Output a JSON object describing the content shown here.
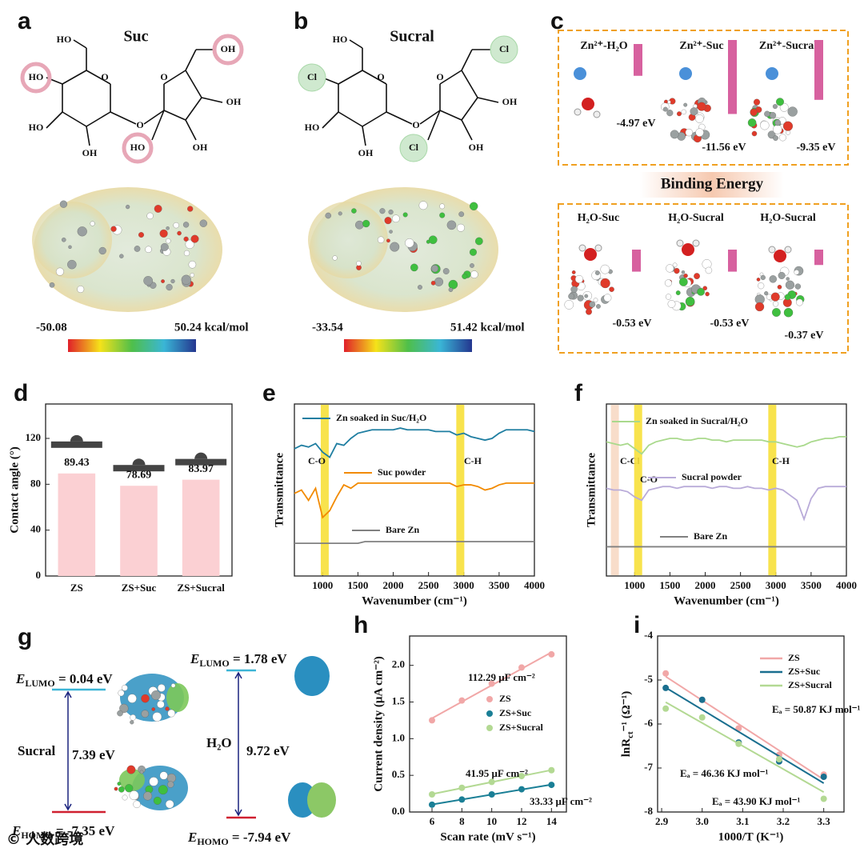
{
  "panels": {
    "a": {
      "label": "a",
      "title": "Suc",
      "atoms": [
        "HO",
        "HO",
        "HO",
        "OH",
        "O",
        "O",
        "O",
        "OH",
        "OH",
        "OH",
        "HO"
      ],
      "colorbar": [
        "-50.08",
        "50.24 kcal/mol"
      ]
    },
    "b": {
      "label": "b",
      "title": "Sucral",
      "atoms": [
        "HO",
        "Cl",
        "HO",
        "OH",
        "O",
        "O",
        "O",
        "Cl",
        "OH",
        "OH",
        "Cl"
      ],
      "colorbar": [
        "-33.54",
        "51.42 kcal/mol"
      ]
    },
    "c": {
      "label": "c",
      "zn": {
        "names": [
          "Zn²⁺-H₂O",
          "Zn²⁺-Suc",
          "Zn²⁺-Sucral"
        ],
        "values": [
          -4.97,
          -11.56,
          -9.35
        ],
        "value_labels": [
          "-4.97 eV",
          "-11.56 eV",
          "-9.35 eV"
        ],
        "color": "#d7619f"
      },
      "banner": "Binding Energy",
      "h2o": {
        "names": [
          "H₂O-Suc",
          "H₂O-Sucral",
          "H₂O-Sucral"
        ],
        "values": [
          -0.53,
          -0.53,
          -0.37
        ],
        "value_labels": [
          "-0.53 eV",
          "-0.53 eV",
          "-0.37 eV"
        ],
        "color": "#d7619f"
      }
    },
    "g": {
      "label": "g",
      "left": {
        "molecule": "Sucral",
        "gap": "7.39 eV",
        "lumo": {
          "symbol": "E",
          "sub": "LUMO",
          "rest": " = 0.04 eV"
        },
        "homo": {
          "symbol": "E",
          "sub": "HOMO",
          "rest": " = -7.35 eV"
        }
      },
      "right": {
        "molecule": "H₂O",
        "gap": "9.72 eV",
        "lumo": {
          "symbol": "E",
          "sub": "LUMO",
          "rest": " = 1.78 eV"
        },
        "homo": {
          "symbol": "E",
          "sub": "HOMO",
          "rest": " = -7.94 eV"
        }
      }
    }
  },
  "chart_data": [
    {
      "type": "bar",
      "panel_label": "d",
      "ylabel": "Contact angle (°)",
      "categories": [
        "ZS",
        "ZS+Suc",
        "ZS+Sucral"
      ],
      "values": [
        89.43,
        78.69,
        83.97
      ],
      "color": "#fbd0d3",
      "ylim": [
        0,
        150
      ],
      "yticks": [
        0,
        40,
        80,
        120
      ]
    },
    {
      "type": "line",
      "panel_label": "e",
      "xlabel": "Wavenumber (cm⁻¹)",
      "ylabel": "Transmittance",
      "x": [
        600,
        700,
        800,
        900,
        1000,
        1100,
        1200,
        1300,
        1400,
        1500,
        1600,
        1700,
        1800,
        1900,
        2000,
        2100,
        2200,
        2300,
        2400,
        2500,
        2600,
        2700,
        2800,
        2900,
        3000,
        3100,
        3200,
        3300,
        3400,
        3500,
        3600,
        3700,
        3800,
        3900,
        4000
      ],
      "xlim": [
        600,
        4000
      ],
      "xticks": [
        1000,
        1500,
        2000,
        2500,
        3000,
        3500,
        4000
      ],
      "ylim": [
        0,
        10
      ],
      "series": [
        {
          "name": "Zn soaked in Suc/H₂O",
          "color": "#1f7ea1",
          "values": [
            7.4,
            7.6,
            7.5,
            7.7,
            7.2,
            6.9,
            7.7,
            7.6,
            8.0,
            8.3,
            8.4,
            8.5,
            8.5,
            8.5,
            8.5,
            8.6,
            8.5,
            8.5,
            8.5,
            8.5,
            8.4,
            8.4,
            8.4,
            8.2,
            8.3,
            8.1,
            8.0,
            7.9,
            8.0,
            8.3,
            8.5,
            8.5,
            8.5,
            8.5,
            8.4
          ]
        },
        {
          "name": "Suc powder",
          "color": "#f28a00",
          "values": [
            4.8,
            5.0,
            4.4,
            5.1,
            3.4,
            3.8,
            4.6,
            5.3,
            5.1,
            5.4,
            5.4,
            5.4,
            5.4,
            5.4,
            5.4,
            5.4,
            5.4,
            5.4,
            5.4,
            5.4,
            5.4,
            5.4,
            5.4,
            5.2,
            5.3,
            5.3,
            5.2,
            5.0,
            5.1,
            5.3,
            5.4,
            5.4,
            5.4,
            5.4,
            5.4
          ]
        },
        {
          "name": "Bare Zn",
          "color": "#808080",
          "values": [
            1.9,
            1.9,
            1.9,
            1.9,
            1.9,
            1.9,
            1.9,
            1.9,
            1.9,
            1.9,
            2.0,
            2.0,
            2.0,
            2.0,
            2.0,
            2.0,
            2.0,
            2.0,
            2.0,
            2.0,
            2.0,
            2.0,
            2.0,
            2.0,
            2.0,
            2.0,
            2.0,
            2.0,
            2.0,
            2.0,
            2.0,
            2.0,
            2.0,
            2.0,
            2.0
          ]
        }
      ],
      "bands": [
        {
          "label": "C-O",
          "x": 1030,
          "color": "#f7e03a"
        },
        {
          "label": "C-H",
          "x": 2950,
          "color": "#f7e03a"
        }
      ]
    },
    {
      "type": "line",
      "panel_label": "f",
      "xlabel": "Wavenumber (cm⁻¹)",
      "ylabel": "Transmittance",
      "x": [
        600,
        700,
        800,
        900,
        1000,
        1100,
        1200,
        1300,
        1400,
        1500,
        1600,
        1700,
        1800,
        1900,
        2000,
        2100,
        2200,
        2300,
        2400,
        2500,
        2600,
        2700,
        2800,
        2900,
        3000,
        3100,
        3200,
        3300,
        3400,
        3500,
        3600,
        3700,
        3800,
        3900,
        4000
      ],
      "xlim": [
        600,
        4000
      ],
      "xticks": [
        1000,
        1500,
        2000,
        2500,
        3000,
        3500,
        4000
      ],
      "ylim": [
        0,
        10
      ],
      "series": [
        {
          "name": "Zn soaked in Sucral/H₂O",
          "color": "#a9d98c",
          "values": [
            7.8,
            7.7,
            7.6,
            7.7,
            7.4,
            7.1,
            7.6,
            7.8,
            7.9,
            8.0,
            8.0,
            7.9,
            7.9,
            8.0,
            8.0,
            7.9,
            7.9,
            7.8,
            7.9,
            7.9,
            7.9,
            7.9,
            7.9,
            7.8,
            7.8,
            7.7,
            7.6,
            7.5,
            7.6,
            7.8,
            7.9,
            8.0,
            8.0,
            8.1,
            8.1
          ]
        },
        {
          "name": "Sucral powder",
          "color": "#b9abd9",
          "values": [
            5.1,
            5.0,
            5.0,
            4.9,
            4.6,
            4.4,
            5.0,
            5.1,
            5.2,
            5.2,
            5.1,
            5.2,
            5.2,
            5.2,
            5.2,
            5.1,
            5.2,
            5.2,
            5.1,
            5.1,
            5.2,
            5.1,
            5.1,
            5.0,
            5.1,
            5.0,
            4.7,
            4.4,
            3.3,
            4.5,
            5.1,
            5.2,
            5.2,
            5.2,
            5.2
          ]
        },
        {
          "name": "Bare Zn",
          "color": "#808080",
          "values": [
            1.7,
            1.7,
            1.7,
            1.7,
            1.7,
            1.7,
            1.7,
            1.7,
            1.7,
            1.7,
            1.7,
            1.7,
            1.7,
            1.7,
            1.7,
            1.7,
            1.7,
            1.7,
            1.7,
            1.7,
            1.7,
            1.7,
            1.7,
            1.7,
            1.7,
            1.7,
            1.7,
            1.7,
            1.7,
            1.7,
            1.7,
            1.7,
            1.7,
            1.7,
            1.7
          ]
        }
      ],
      "bands": [
        {
          "label": "C-Cl",
          "x": 720,
          "color": "#f7d9c4"
        },
        {
          "label": "C-O",
          "x": 1050,
          "color": "#f7e03a"
        },
        {
          "label": "C-H",
          "x": 2950,
          "color": "#f7e03a"
        }
      ]
    },
    {
      "type": "scatter",
      "panel_label": "h",
      "xlabel": "Scan rate (mV s⁻¹)",
      "ylabel": "Current density (μA cm⁻²)",
      "x": [
        6,
        8,
        10,
        12,
        14
      ],
      "xlim": [
        4.5,
        15
      ],
      "xticks": [
        6,
        8,
        10,
        12,
        14
      ],
      "ylim": [
        0,
        2.4
      ],
      "yticks": [
        {
          "value": 0,
          "label": "0.0"
        },
        0.5,
        {
          "value": 1,
          "label": "1.0"
        },
        1.5,
        {
          "value": 2,
          "label": "2.0"
        }
      ],
      "series": [
        {
          "name": "ZS",
          "color": "#f1a7a7",
          "values": [
            1.25,
            1.52,
            1.75,
            1.97,
            2.15
          ]
        },
        {
          "name": "ZS+Suc",
          "color": "#1a7f96",
          "values": [
            0.1,
            0.17,
            0.24,
            0.31,
            0.37
          ]
        },
        {
          "name": "ZS+Sucral",
          "color": "#b3d993",
          "values": [
            0.24,
            0.33,
            0.41,
            0.49,
            0.57
          ]
        }
      ],
      "annotations": [
        {
          "text": "112.29 μF cm⁻²",
          "color": "#f1a7a7"
        },
        {
          "text": "41.95 μF cm⁻²",
          "color": "#b3d993"
        },
        {
          "text": "33.33 μF cm⁻²",
          "color": "#1a7f96"
        }
      ]
    },
    {
      "type": "scatter",
      "panel_label": "i",
      "xlabel": "1000/T (K⁻¹)",
      "ylabel": {
        "main": "lnR",
        "sub": "ct",
        "rest": "⁻¹ (Ω⁻¹)"
      },
      "x": [
        2.91,
        3.0,
        3.09,
        3.19,
        3.3
      ],
      "xlim": [
        2.89,
        3.35
      ],
      "xticks": [
        2.9,
        {
          "value": 3,
          "label": "3.0"
        },
        3.1,
        3.2,
        3.3
      ],
      "ylim": [
        -8,
        -4
      ],
      "yticks": [
        -8,
        -7,
        -6,
        -5,
        -4
      ],
      "series": [
        {
          "name": "ZS",
          "color": "#f1a7a7",
          "values": [
            -4.85,
            -5.45,
            -6.1,
            -6.7,
            -7.15
          ]
        },
        {
          "name": "ZS+Suc",
          "color": "#1a6f8f",
          "values": [
            -5.18,
            -5.45,
            -6.42,
            -6.85,
            -7.2
          ]
        },
        {
          "name": "ZS+Sucral",
          "color": "#b3d993",
          "values": [
            -5.65,
            -5.85,
            -6.45,
            -6.8,
            -7.7
          ]
        }
      ],
      "annotations": [
        {
          "text": "Eₐ = 50.87 KJ mol⁻¹",
          "color": "#f1a7a7"
        },
        {
          "text": "Eₐ = 46.36 KJ mol⁻¹",
          "color": "#1a6f8f"
        },
        {
          "text": "Eₐ = 43.90 KJ mol⁻¹",
          "color": "#b3d993"
        }
      ]
    }
  ],
  "watermark": "© 人数跨境"
}
